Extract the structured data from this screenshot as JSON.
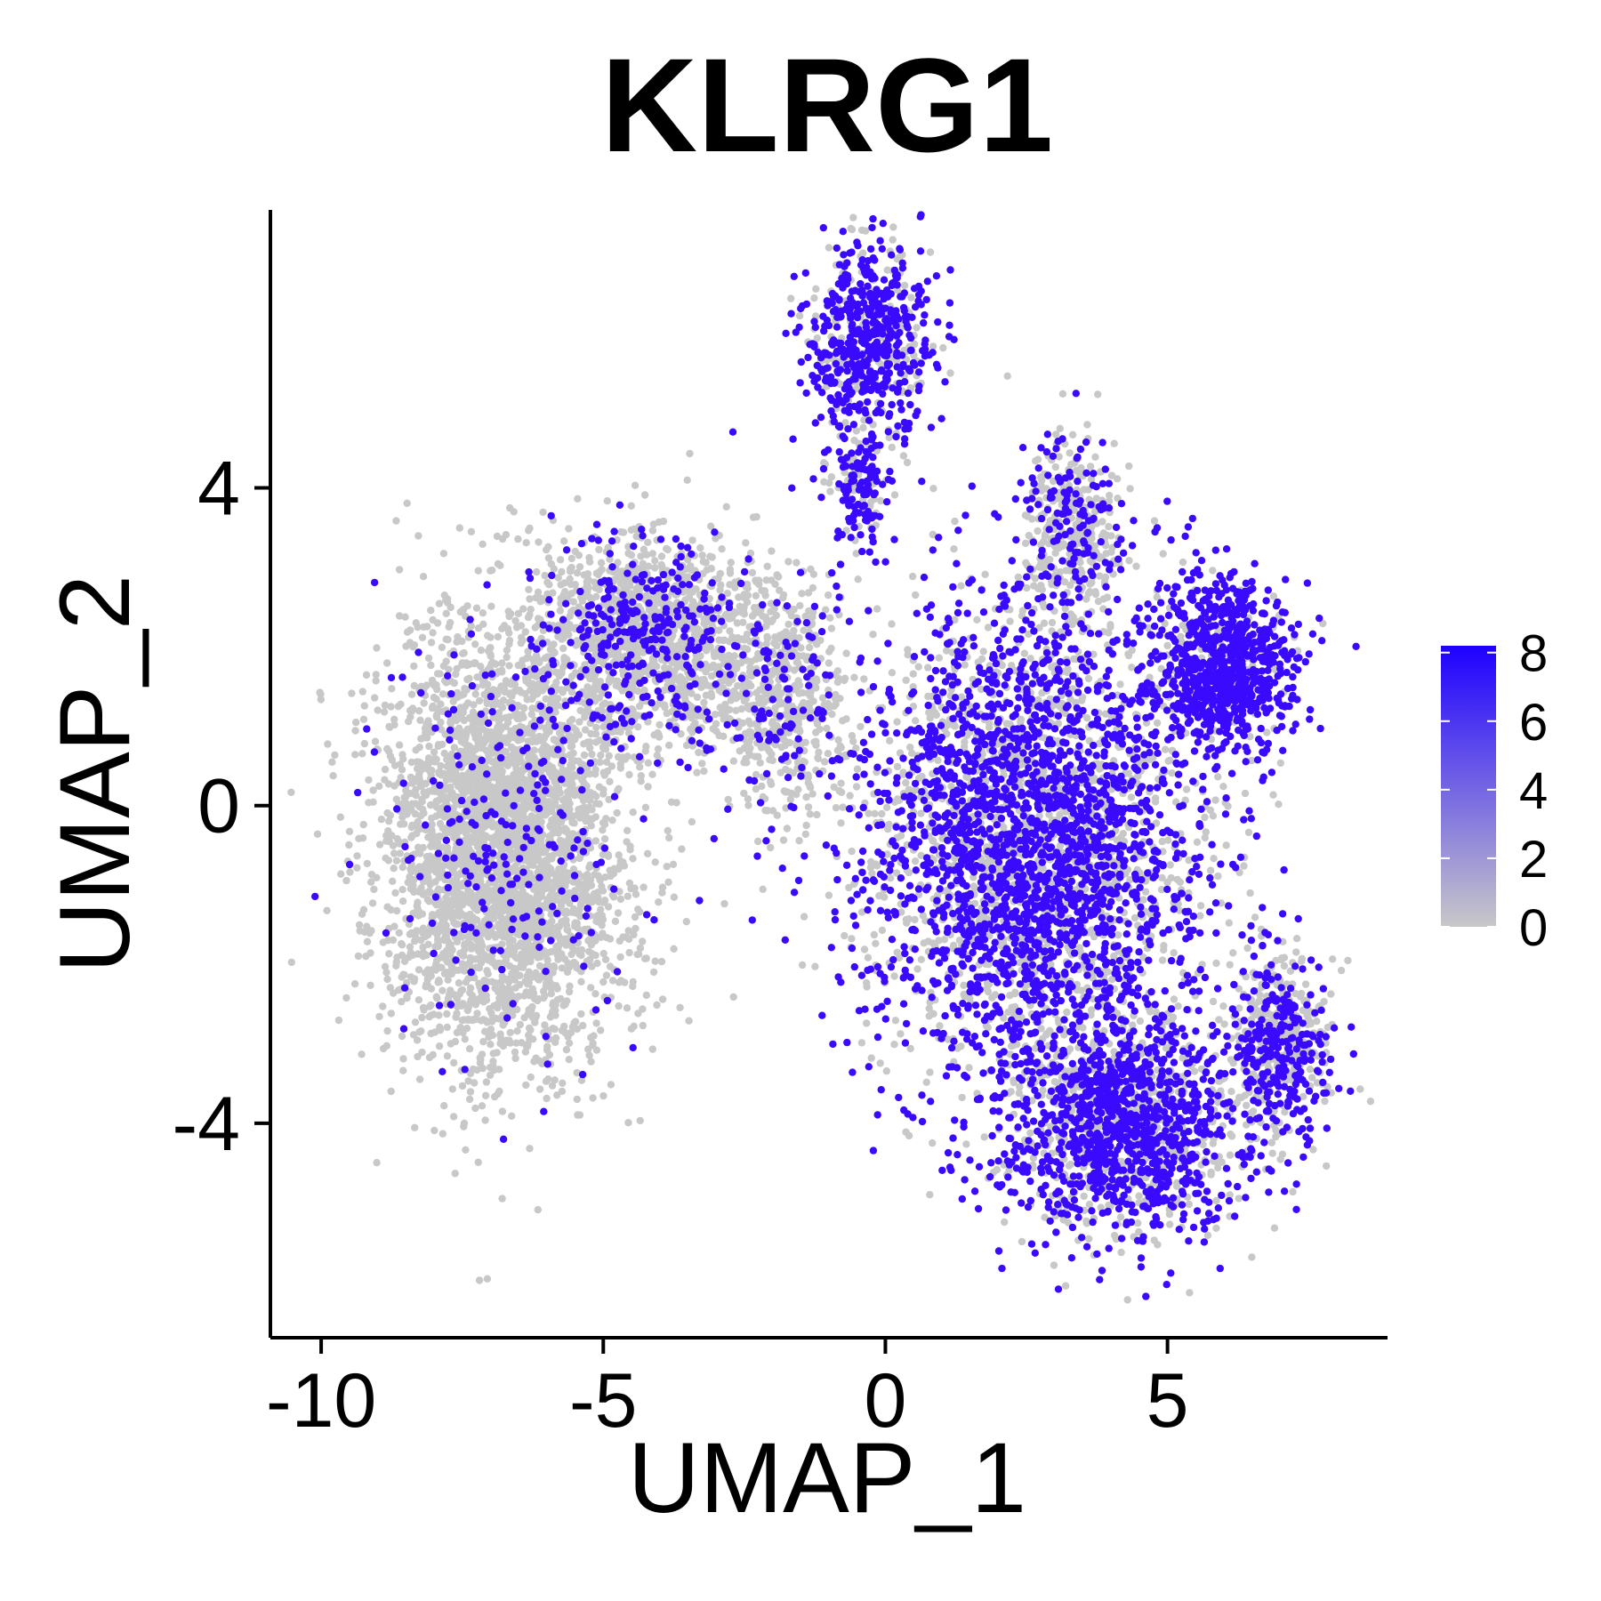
{
  "chart_data": {
    "type": "scatter",
    "title": "KLRG1",
    "xlabel": "UMAP_1",
    "ylabel": "UMAP_2",
    "xlim": [
      -10.9,
      8.9
    ],
    "ylim": [
      -6.7,
      7.5
    ],
    "x_ticks": [
      -10,
      -5,
      0,
      5
    ],
    "x_tick_labels": [
      "-10",
      "-5",
      "0",
      "5"
    ],
    "y_ticks": [
      -4,
      0,
      4
    ],
    "y_tick_labels": [
      "-4",
      "0",
      "4"
    ],
    "grid": false,
    "legend": {
      "placement": "right",
      "type": "colorbar",
      "range": [
        0,
        8.2
      ],
      "ticks": [
        0,
        2,
        4,
        6,
        8
      ],
      "tick_labels": [
        "0",
        "2",
        "4",
        "6",
        "8"
      ],
      "low_color": "#c8c8c8",
      "high_color": "#1e00ff"
    },
    "point_colors": {
      "low": "#c8c8c8",
      "high": "#3a0aff"
    },
    "clusters": [
      {
        "id": "left-lobe",
        "cx": -6.8,
        "cy": -0.5,
        "sx": 1.45,
        "sy": 1.9,
        "expr_prob": 0.06,
        "weight": 0.27
      },
      {
        "id": "left-upper",
        "cx": -4.3,
        "cy": 2.1,
        "sx": 1.3,
        "sy": 0.9,
        "expr_prob": 0.22,
        "weight": 0.1
      },
      {
        "id": "bridge",
        "cx": -2.0,
        "cy": 1.4,
        "sx": 0.9,
        "sy": 1.0,
        "expr_prob": 0.15,
        "weight": 0.05
      },
      {
        "id": "top-cluster",
        "cx": -0.3,
        "cy": 5.8,
        "sx": 0.75,
        "sy": 0.9,
        "expr_prob": 0.72,
        "weight": 0.05
      },
      {
        "id": "top-stalk",
        "cx": -0.5,
        "cy": 4.0,
        "sx": 0.4,
        "sy": 0.5,
        "expr_prob": 0.7,
        "weight": 0.01
      },
      {
        "id": "right-upper-arm",
        "cx": 3.3,
        "cy": 3.5,
        "sx": 0.6,
        "sy": 0.8,
        "expr_prob": 0.3,
        "weight": 0.03
      },
      {
        "id": "right-top",
        "cx": 6.0,
        "cy": 1.8,
        "sx": 0.85,
        "sy": 0.75,
        "expr_prob": 0.9,
        "weight": 0.06
      },
      {
        "id": "right-main",
        "cx": 2.6,
        "cy": -0.4,
        "sx": 2.1,
        "sy": 2.0,
        "expr_prob": 0.58,
        "weight": 0.27
      },
      {
        "id": "right-bottom",
        "cx": 4.2,
        "cy": -4.0,
        "sx": 1.6,
        "sy": 1.0,
        "expr_prob": 0.62,
        "weight": 0.12
      },
      {
        "id": "far-right-lower",
        "cx": 7.0,
        "cy": -3.0,
        "sx": 0.6,
        "sy": 0.8,
        "expr_prob": 0.45,
        "weight": 0.04
      }
    ]
  }
}
